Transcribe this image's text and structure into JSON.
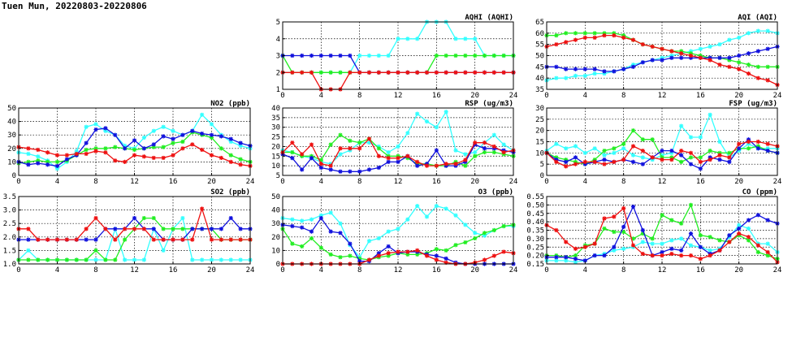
{
  "page": {
    "title": "Tuen Mun, 20220803-20220806"
  },
  "colors": {
    "cyan": "#33ffff",
    "green": "#22ee22",
    "blue": "#1111dd",
    "red": "#ee1111"
  },
  "chart_data": [
    {
      "id": "aqhi",
      "type": "line",
      "title": "AQHI (AQHI)",
      "xlim": [
        0,
        24
      ],
      "ylim": [
        1,
        5
      ],
      "xticks": [
        0,
        4,
        8,
        12,
        16,
        20,
        24
      ],
      "yticks": [
        1,
        2,
        3,
        4,
        5
      ],
      "series": [
        {
          "color": "cyan",
          "values": [
            2,
            2,
            2,
            2,
            2,
            2,
            2,
            2,
            3,
            3,
            3,
            3,
            4,
            4,
            4,
            5,
            5,
            5,
            4,
            4,
            4,
            3,
            3,
            3,
            3
          ]
        },
        {
          "color": "green",
          "values": [
            3,
            2,
            2,
            2,
            2,
            2,
            2,
            2,
            2,
            2,
            2,
            2,
            2,
            2,
            2,
            2,
            3,
            3,
            3,
            3,
            3,
            3,
            3,
            3,
            3
          ]
        },
        {
          "color": "blue",
          "values": [
            3,
            3,
            3,
            3,
            3,
            3,
            3,
            3,
            2,
            2,
            2,
            2,
            2,
            2,
            2,
            2,
            2,
            2,
            2,
            2,
            2,
            2,
            2,
            2,
            2
          ]
        },
        {
          "color": "red",
          "values": [
            2,
            2,
            2,
            2,
            1,
            1,
            1,
            2,
            2,
            2,
            2,
            2,
            2,
            2,
            2,
            2,
            2,
            2,
            2,
            2,
            2,
            2,
            2,
            2,
            2
          ]
        }
      ]
    },
    {
      "id": "aqi",
      "type": "line",
      "title": "AQI (AQI)",
      "xlim": [
        0,
        24
      ],
      "ylim": [
        35,
        65
      ],
      "xticks": [
        0,
        4,
        8,
        12,
        16,
        20,
        24
      ],
      "yticks": [
        35,
        40,
        45,
        50,
        55,
        60,
        65
      ],
      "series": [
        {
          "color": "cyan",
          "values": [
            39,
            40,
            40,
            41,
            41,
            42,
            42,
            43,
            44,
            46,
            47,
            48,
            49,
            50,
            51,
            52,
            53,
            54,
            55,
            57,
            58,
            60,
            61,
            61,
            60
          ]
        },
        {
          "color": "green",
          "values": [
            59,
            59,
            60,
            60,
            60,
            60,
            60,
            60,
            59,
            57,
            55,
            54,
            53,
            52,
            52,
            51,
            50,
            49,
            49,
            48,
            47,
            46,
            45,
            45,
            45
          ]
        },
        {
          "color": "blue",
          "values": [
            45,
            45,
            44,
            44,
            44,
            44,
            43,
            43,
            44,
            45,
            47,
            48,
            48,
            49,
            49,
            49,
            49,
            49,
            49,
            49,
            50,
            51,
            52,
            53,
            54
          ]
        },
        {
          "color": "red",
          "values": [
            54,
            55,
            56,
            57,
            58,
            58,
            59,
            59,
            58,
            57,
            55,
            54,
            53,
            52,
            51,
            50,
            49,
            48,
            46,
            45,
            44,
            42,
            40,
            39,
            37
          ]
        }
      ]
    },
    {
      "id": "no2",
      "type": "line",
      "title": "NO2 (ppb)",
      "xlim": [
        0,
        24
      ],
      "ylim": [
        0,
        50
      ],
      "xticks": [
        0,
        4,
        8,
        12,
        16,
        20,
        24
      ],
      "yticks": [
        0,
        10,
        20,
        30,
        40,
        50
      ],
      "series": [
        {
          "color": "cyan",
          "values": [
            17,
            16,
            14,
            11,
            5,
            10,
            18,
            36,
            38,
            33,
            30,
            22,
            20,
            28,
            33,
            36,
            33,
            30,
            33,
            45,
            38,
            30,
            25,
            22,
            20
          ]
        },
        {
          "color": "green",
          "values": [
            9,
            10,
            11,
            10,
            10,
            11,
            15,
            19,
            20,
            20,
            21,
            20,
            19,
            20,
            21,
            21,
            24,
            25,
            32,
            30,
            28,
            20,
            15,
            12,
            10
          ]
        },
        {
          "color": "blue",
          "values": [
            10,
            8,
            9,
            8,
            7,
            12,
            15,
            24,
            34,
            35,
            30,
            20,
            26,
            20,
            23,
            29,
            27,
            30,
            33,
            31,
            30,
            29,
            27,
            24,
            22
          ]
        },
        {
          "color": "red",
          "values": [
            21,
            20,
            19,
            17,
            15,
            15,
            16,
            16,
            18,
            17,
            11,
            10,
            15,
            14,
            13,
            13,
            15,
            20,
            23,
            19,
            15,
            13,
            10,
            8,
            7
          ]
        }
      ]
    },
    {
      "id": "rsp",
      "type": "line",
      "title": "RSP (ug/m3)",
      "xlim": [
        0,
        24
      ],
      "ylim": [
        5,
        40
      ],
      "xticks": [
        0,
        4,
        8,
        12,
        16,
        20,
        24
      ],
      "yticks": [
        5,
        10,
        15,
        20,
        25,
        30,
        35,
        40
      ],
      "series": [
        {
          "color": "cyan",
          "values": [
            18,
            17,
            15,
            14,
            12,
            11,
            16,
            18,
            22,
            22,
            20,
            17,
            20,
            27,
            37,
            33,
            30,
            38,
            18,
            16,
            17,
            22,
            26,
            21,
            18
          ]
        },
        {
          "color": "green",
          "values": [
            17,
            17,
            15,
            15,
            13,
            21,
            26,
            23,
            22,
            24,
            19,
            15,
            15,
            14,
            11,
            11,
            10,
            10,
            12,
            10,
            15,
            17,
            17,
            16,
            15
          ]
        },
        {
          "color": "blue",
          "values": [
            16,
            14,
            8,
            14,
            9,
            8,
            7,
            7,
            7,
            8,
            9,
            12,
            12,
            15,
            10,
            11,
            18,
            10,
            10,
            12,
            21,
            19,
            19,
            18,
            17
          ]
        },
        {
          "color": "red",
          "values": [
            17,
            22,
            16,
            21,
            11,
            10,
            19,
            19,
            19,
            24,
            15,
            14,
            14,
            15,
            12,
            10,
            10,
            11,
            11,
            13,
            22,
            22,
            20,
            17,
            18
          ]
        }
      ]
    },
    {
      "id": "fsp",
      "type": "line",
      "title": "FSP (ug/m3)",
      "xlim": [
        0,
        24
      ],
      "ylim": [
        0,
        30
      ],
      "xticks": [
        0,
        4,
        8,
        12,
        16,
        20,
        24
      ],
      "yticks": [
        0,
        5,
        10,
        15,
        20,
        25,
        30
      ],
      "series": [
        {
          "color": "cyan",
          "values": [
            11,
            14,
            12,
            13,
            10,
            12,
            9,
            10,
            12,
            9,
            8,
            7,
            9,
            10,
            22,
            17,
            17,
            27,
            15,
            8,
            11,
            14,
            12,
            12,
            12
          ]
        },
        {
          "color": "green",
          "values": [
            10,
            8,
            7,
            6,
            5,
            7,
            11,
            12,
            14,
            20,
            16,
            16,
            8,
            8,
            6,
            8,
            8,
            11,
            10,
            10,
            12,
            12,
            13,
            11,
            10
          ]
        },
        {
          "color": "blue",
          "values": [
            10,
            7,
            6,
            8,
            5,
            6,
            7,
            6,
            7,
            6,
            5,
            8,
            11,
            11,
            9,
            5,
            3,
            8,
            7,
            6,
            12,
            16,
            12,
            11,
            10
          ]
        },
        {
          "color": "red",
          "values": [
            10,
            6,
            4,
            5,
            6,
            6,
            5,
            6,
            7,
            13,
            11,
            8,
            7,
            7,
            11,
            10,
            6,
            7,
            9,
            8,
            14,
            15,
            15,
            14,
            13
          ]
        }
      ]
    },
    {
      "id": "so2",
      "type": "line",
      "title": "SO2 (ppb)",
      "xlim": [
        0,
        24
      ],
      "ylim": [
        1.0,
        3.5
      ],
      "xticks": [
        0,
        4,
        8,
        12,
        16,
        20,
        24
      ],
      "yticks": [
        1.0,
        1.5,
        2.0,
        2.5,
        3.0,
        3.5
      ],
      "series": [
        {
          "color": "cyan",
          "values": [
            1.15,
            1.5,
            1.15,
            1.15,
            1.15,
            1.15,
            1.15,
            1.15,
            1.15,
            1.15,
            2.3,
            1.15,
            1.15,
            1.15,
            2.3,
            1.5,
            2.3,
            2.7,
            1.15,
            1.15,
            1.15,
            1.15,
            1.15,
            1.15,
            1.15
          ]
        },
        {
          "color": "green",
          "values": [
            1.15,
            1.15,
            1.15,
            1.15,
            1.15,
            1.15,
            1.15,
            1.15,
            1.5,
            1.15,
            1.15,
            1.9,
            2.3,
            2.7,
            2.7,
            2.3,
            2.3,
            2.3,
            2.3,
            2.3,
            2.3,
            1.9,
            1.9,
            1.9,
            1.9
          ]
        },
        {
          "color": "blue",
          "values": [
            1.9,
            1.9,
            1.9,
            1.9,
            1.9,
            1.9,
            1.9,
            1.9,
            1.9,
            2.3,
            2.3,
            2.3,
            2.7,
            2.3,
            2.3,
            1.9,
            1.9,
            1.9,
            2.3,
            2.3,
            2.3,
            2.3,
            2.7,
            2.3,
            2.3
          ]
        },
        {
          "color": "red",
          "values": [
            2.3,
            2.3,
            1.9,
            1.9,
            1.9,
            1.9,
            1.9,
            2.3,
            2.7,
            2.3,
            1.9,
            2.3,
            2.3,
            2.3,
            1.9,
            1.9,
            1.9,
            1.9,
            1.9,
            3.05,
            1.9,
            1.9,
            1.9,
            1.9,
            1.9
          ]
        }
      ]
    },
    {
      "id": "o3",
      "type": "line",
      "title": "O3 (ppb)",
      "xlim": [
        0,
        24
      ],
      "ylim": [
        0,
        50
      ],
      "xticks": [
        0,
        4,
        8,
        12,
        16,
        20,
        24
      ],
      "yticks": [
        0,
        10,
        20,
        30,
        40,
        50
      ],
      "series": [
        {
          "color": "cyan",
          "values": [
            34,
            33,
            32,
            33,
            36,
            38,
            30,
            14,
            5,
            17,
            19,
            24,
            26,
            33,
            43,
            35,
            43,
            41,
            36,
            29,
            23,
            21,
            25,
            28,
            28
          ]
        },
        {
          "color": "green",
          "values": [
            26,
            15,
            13,
            19,
            12,
            7,
            5,
            6,
            4,
            3,
            5,
            6,
            8,
            7,
            7,
            8,
            11,
            10,
            14,
            16,
            19,
            23,
            25,
            28,
            29
          ]
        },
        {
          "color": "blue",
          "values": [
            29,
            28,
            27,
            24,
            34,
            24,
            23,
            15,
            2,
            2,
            8,
            13,
            8,
            9,
            9,
            7,
            6,
            4,
            1,
            0,
            0,
            0,
            0,
            0,
            0
          ]
        },
        {
          "color": "red",
          "values": [
            0,
            0,
            0,
            0,
            0,
            0,
            0,
            0,
            0,
            3,
            6,
            8,
            9,
            9,
            10,
            6,
            3,
            1,
            0,
            0,
            1,
            3,
            6,
            9,
            8
          ]
        }
      ]
    },
    {
      "id": "co",
      "type": "line",
      "title": "CO (ppm)",
      "xlim": [
        0,
        24
      ],
      "ylim": [
        0.15,
        0.55
      ],
      "xticks": [
        0,
        4,
        8,
        12,
        16,
        20,
        24
      ],
      "yticks": [
        0.15,
        0.2,
        0.25,
        0.3,
        0.35,
        0.4,
        0.45,
        0.5,
        0.55
      ],
      "series": [
        {
          "color": "cyan",
          "values": [
            0.17,
            0.17,
            0.17,
            0.16,
            0.17,
            0.2,
            0.21,
            0.23,
            0.24,
            0.25,
            0.28,
            0.27,
            0.27,
            0.29,
            0.3,
            0.26,
            0.25,
            0.23,
            0.24,
            0.31,
            0.38,
            0.36,
            0.27,
            0.27,
            0.22
          ]
        },
        {
          "color": "green",
          "values": [
            0.2,
            0.2,
            0.19,
            0.2,
            0.26,
            0.27,
            0.36,
            0.34,
            0.34,
            0.3,
            0.33,
            0.3,
            0.44,
            0.41,
            0.39,
            0.5,
            0.32,
            0.31,
            0.29,
            0.28,
            0.32,
            0.29,
            0.22,
            0.2,
            0.18
          ]
        },
        {
          "color": "blue",
          "values": [
            0.19,
            0.19,
            0.19,
            0.18,
            0.17,
            0.2,
            0.2,
            0.25,
            0.37,
            0.49,
            0.35,
            0.2,
            0.22,
            0.24,
            0.23,
            0.33,
            0.25,
            0.21,
            0.23,
            0.32,
            0.36,
            0.41,
            0.44,
            0.41,
            0.39
          ]
        },
        {
          "color": "red",
          "values": [
            0.38,
            0.35,
            0.28,
            0.24,
            0.25,
            0.27,
            0.42,
            0.43,
            0.48,
            0.26,
            0.21,
            0.2,
            0.2,
            0.21,
            0.2,
            0.2,
            0.18,
            0.2,
            0.23,
            0.28,
            0.33,
            0.31,
            0.26,
            0.22,
            0.16
          ]
        }
      ]
    }
  ]
}
